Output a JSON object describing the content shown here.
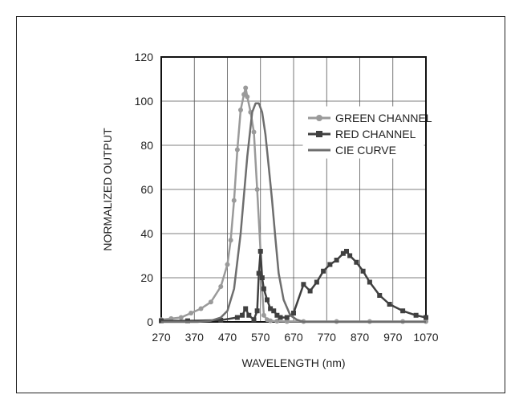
{
  "chart_data": {
    "type": "line",
    "xlabel": "WAVELENGTH (nm)",
    "ylabel": "NORMALIZED OUTPUT",
    "xlim": [
      270,
      1070
    ],
    "ylim": [
      0,
      120
    ],
    "xticks": [
      270,
      370,
      470,
      570,
      670,
      770,
      870,
      970,
      1070
    ],
    "yticks": [
      0,
      20,
      40,
      60,
      80,
      100,
      120
    ],
    "grid": true,
    "legend_position": "center-right",
    "series": [
      {
        "name": "GREEN CHANNEL",
        "color": "#9a9a9a",
        "marker": "circle",
        "x": [
          270,
          300,
          330,
          360,
          390,
          420,
          450,
          470,
          480,
          490,
          500,
          510,
          520,
          525,
          530,
          540,
          550,
          560,
          570,
          575,
          580,
          590,
          600,
          620,
          650,
          700,
          800,
          900,
          1000,
          1070
        ],
        "values": [
          1,
          1.5,
          2,
          4,
          6,
          9,
          16,
          26,
          37,
          55,
          78,
          96,
          103,
          106,
          102,
          95,
          86,
          60,
          32,
          15,
          3,
          1,
          0.5,
          0.3,
          0.2,
          0.2,
          0.2,
          0.2,
          0.2,
          0.2
        ]
      },
      {
        "name": "RED CHANNEL",
        "color": "#404040",
        "marker": "square",
        "x": [
          270,
          350,
          450,
          500,
          515,
          525,
          535,
          550,
          560,
          565,
          570,
          575,
          580,
          590,
          600,
          610,
          620,
          630,
          650,
          670,
          700,
          720,
          740,
          760,
          780,
          800,
          820,
          830,
          840,
          860,
          880,
          900,
          930,
          960,
          1000,
          1040,
          1070
        ],
        "values": [
          0.5,
          0.5,
          0.8,
          2,
          3,
          6,
          3,
          1,
          5,
          22,
          32,
          20,
          15,
          10,
          6,
          5,
          3,
          2,
          2,
          4,
          17,
          14,
          18,
          23,
          26,
          28,
          31,
          32,
          30,
          27,
          23,
          18,
          12,
          8,
          5,
          3,
          2
        ]
      },
      {
        "name": "CIE CURVE",
        "color": "#6e6e6e",
        "marker": "none",
        "x": [
          270,
          380,
          420,
          450,
          470,
          490,
          510,
          530,
          545,
          555,
          565,
          575,
          585,
          595,
          605,
          615,
          625,
          640,
          660,
          680,
          700,
          1070
        ],
        "values": [
          0,
          0,
          0.5,
          2,
          5,
          15,
          40,
          75,
          95,
          99,
          99,
          95,
          85,
          70,
          55,
          38,
          22,
          10,
          3,
          1,
          0,
          0
        ]
      }
    ]
  }
}
